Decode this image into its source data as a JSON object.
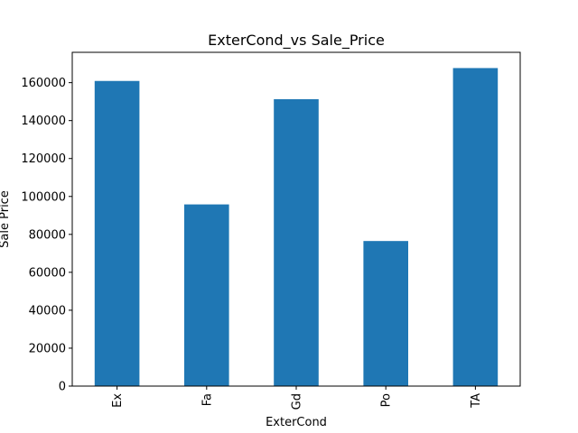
{
  "chart_data": {
    "type": "bar",
    "title": "ExterCond_vs Sale_Price",
    "xlabel": "ExterCond",
    "ylabel": "Sale Price",
    "categories": [
      "Ex",
      "Fa",
      "Gd",
      "Po",
      "TA"
    ],
    "values": [
      160900,
      95800,
      151300,
      76500,
      167700
    ],
    "ylim": [
      0,
      176000
    ],
    "yticks": [
      0,
      20000,
      40000,
      60000,
      80000,
      100000,
      120000,
      140000,
      160000
    ],
    "ytick_labels": [
      "0",
      "20000",
      "40000",
      "60000",
      "80000",
      "100000",
      "120000",
      "140000",
      "160000"
    ],
    "grid": false,
    "legend": "none",
    "bar_color": "#1f77b4",
    "x_tick_rotation": "vertical"
  }
}
